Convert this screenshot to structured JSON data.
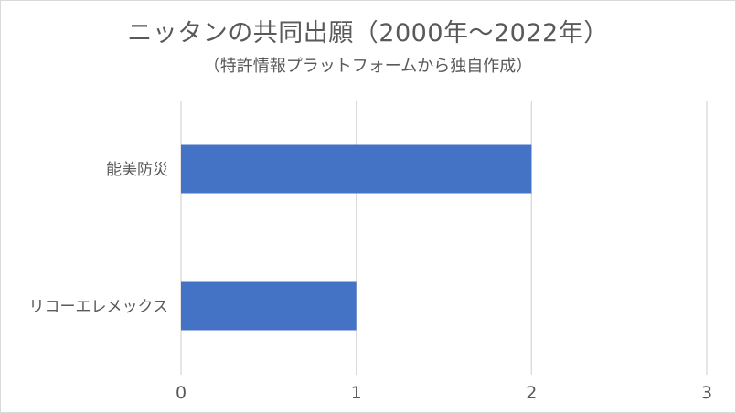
{
  "chart_data": {
    "type": "bar",
    "orientation": "horizontal",
    "title": "ニッタンの共同出願（2000年〜2022年）",
    "subtitle": "（特許情報プラットフォームから独自作成）",
    "categories": [
      "能美防災",
      "リコーエレメックス"
    ],
    "values": [
      2,
      1
    ],
    "xlim": [
      0,
      3
    ],
    "xticks": [
      0,
      1,
      2,
      3
    ],
    "grid": "vertical",
    "legend": "none",
    "bar_color": "#4472C4",
    "grid_color": "#d9d9d9",
    "text_color": "#595959"
  }
}
